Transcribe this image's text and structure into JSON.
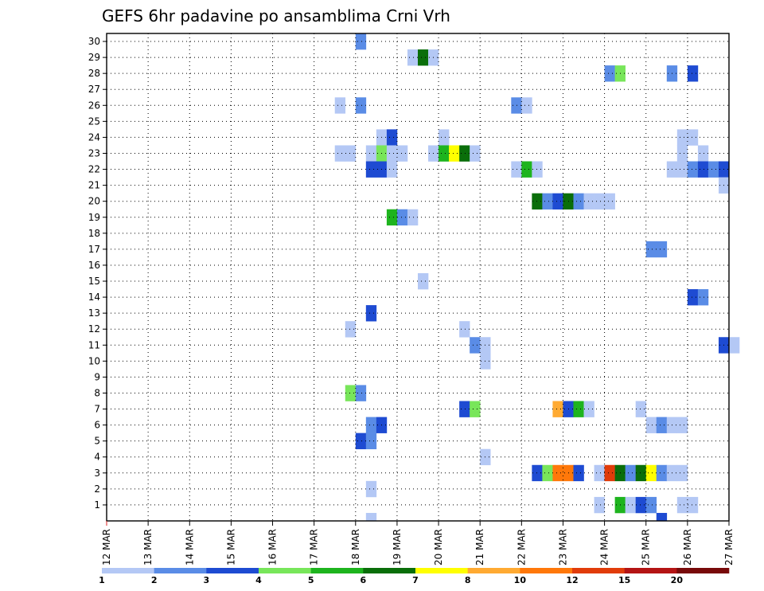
{
  "chart_data": {
    "type": "heatmap",
    "title": "GEFS 6hr padavine po ansamblima Crni Vrh",
    "x_tick_labels": [
      "12 MAR",
      "13 MAR",
      "14 MAR",
      "15 MAR",
      "16 MAR",
      "17 MAR",
      "18 MAR",
      "19 MAR",
      "20 MAR",
      "21 MAR",
      "22 MAR",
      "23 MAR",
      "24 MAR",
      "25 MAR",
      "26 MAR",
      "27 MAR"
    ],
    "y_tick_labels": [
      "1",
      "2",
      "3",
      "4",
      "5",
      "6",
      "7",
      "8",
      "9",
      "10",
      "11",
      "12",
      "13",
      "14",
      "15",
      "16",
      "17",
      "18",
      "19",
      "20",
      "21",
      "22",
      "23",
      "24",
      "25",
      "26",
      "27",
      "28",
      "29",
      "30"
    ],
    "x_range_days": [
      0,
      15
    ],
    "y_range": [
      0,
      30
    ],
    "grid": true,
    "colorbar": {
      "labels": [
        "1",
        "2",
        "3",
        "4",
        "5",
        "6",
        "7",
        "8",
        "10",
        "12",
        "15",
        "20"
      ],
      "colors": [
        "#b4c8f5",
        "#5a8ce6",
        "#1e4bd2",
        "#78e65a",
        "#1eb41e",
        "#0a6e0a",
        "#ffff00",
        "#ffaa32",
        "#ff780a",
        "#e13c0a",
        "#b41414",
        "#780a0a"
      ]
    },
    "cells": [
      {
        "member": 30,
        "step": 24,
        "level": 2
      },
      {
        "member": 29,
        "step": 29,
        "level": 1
      },
      {
        "member": 29,
        "step": 30,
        "level": 6
      },
      {
        "member": 29,
        "step": 31,
        "level": 1
      },
      {
        "member": 28,
        "step": 48,
        "level": 2
      },
      {
        "member": 28,
        "step": 49,
        "level": 4
      },
      {
        "member": 28,
        "step": 54,
        "level": 2
      },
      {
        "member": 28,
        "step": 56,
        "level": 3
      },
      {
        "member": 26,
        "step": 22,
        "level": 1
      },
      {
        "member": 26,
        "step": 24,
        "level": 2
      },
      {
        "member": 26,
        "step": 39,
        "level": 2
      },
      {
        "member": 26,
        "step": 40,
        "level": 1
      },
      {
        "member": 24,
        "step": 26,
        "level": 1
      },
      {
        "member": 24,
        "step": 27,
        "level": 3
      },
      {
        "member": 24,
        "step": 32,
        "level": 1
      },
      {
        "member": 24,
        "step": 55,
        "level": 1
      },
      {
        "member": 24,
        "step": 56,
        "level": 1
      },
      {
        "member": 23,
        "step": 22,
        "level": 1
      },
      {
        "member": 23,
        "step": 23,
        "level": 1
      },
      {
        "member": 23,
        "step": 25,
        "level": 1
      },
      {
        "member": 23,
        "step": 26,
        "level": 4
      },
      {
        "member": 23,
        "step": 27,
        "level": 1
      },
      {
        "member": 23,
        "step": 28,
        "level": 1
      },
      {
        "member": 23,
        "step": 31,
        "level": 1
      },
      {
        "member": 23,
        "step": 32,
        "level": 5
      },
      {
        "member": 23,
        "step": 33,
        "level": 7
      },
      {
        "member": 23,
        "step": 34,
        "level": 6
      },
      {
        "member": 23,
        "step": 35,
        "level": 1
      },
      {
        "member": 23,
        "step": 55,
        "level": 1
      },
      {
        "member": 23,
        "step": 57,
        "level": 1
      },
      {
        "member": 22,
        "step": 25,
        "level": 3
      },
      {
        "member": 22,
        "step": 26,
        "level": 3
      },
      {
        "member": 22,
        "step": 27,
        "level": 1
      },
      {
        "member": 22,
        "step": 39,
        "level": 1
      },
      {
        "member": 22,
        "step": 40,
        "level": 5
      },
      {
        "member": 22,
        "step": 41,
        "level": 1
      },
      {
        "member": 22,
        "step": 54,
        "level": 1
      },
      {
        "member": 22,
        "step": 55,
        "level": 1
      },
      {
        "member": 22,
        "step": 56,
        "level": 2
      },
      {
        "member": 22,
        "step": 57,
        "level": 3
      },
      {
        "member": 22,
        "step": 58,
        "level": 2
      },
      {
        "member": 22,
        "step": 59,
        "level": 3
      },
      {
        "member": 21,
        "step": 59,
        "level": 1
      },
      {
        "member": 20,
        "step": 41,
        "level": 6
      },
      {
        "member": 20,
        "step": 42,
        "level": 2
      },
      {
        "member": 20,
        "step": 43,
        "level": 3
      },
      {
        "member": 20,
        "step": 44,
        "level": 6
      },
      {
        "member": 20,
        "step": 45,
        "level": 2
      },
      {
        "member": 20,
        "step": 46,
        "level": 1
      },
      {
        "member": 20,
        "step": 47,
        "level": 1
      },
      {
        "member": 20,
        "step": 48,
        "level": 1
      },
      {
        "member": 19,
        "step": 27,
        "level": 5
      },
      {
        "member": 19,
        "step": 28,
        "level": 2
      },
      {
        "member": 19,
        "step": 29,
        "level": 1
      },
      {
        "member": 17,
        "step": 52,
        "level": 2
      },
      {
        "member": 17,
        "step": 53,
        "level": 2
      },
      {
        "member": 15,
        "step": 30,
        "level": 1
      },
      {
        "member": 14,
        "step": 56,
        "level": 3
      },
      {
        "member": 14,
        "step": 57,
        "level": 2
      },
      {
        "member": 13,
        "step": 25,
        "level": 3
      },
      {
        "member": 12,
        "step": 23,
        "level": 1
      },
      {
        "member": 12,
        "step": 34,
        "level": 1
      },
      {
        "member": 11,
        "step": 35,
        "level": 2
      },
      {
        "member": 11,
        "step": 36,
        "level": 1
      },
      {
        "member": 11,
        "step": 59,
        "level": 3
      },
      {
        "member": 11,
        "step": 60,
        "level": 1
      },
      {
        "member": 10,
        "step": 36,
        "level": 1
      },
      {
        "member": 8,
        "step": 23,
        "level": 4
      },
      {
        "member": 8,
        "step": 24,
        "level": 2
      },
      {
        "member": 7,
        "step": 34,
        "level": 3
      },
      {
        "member": 7,
        "step": 35,
        "level": 4
      },
      {
        "member": 7,
        "step": 43,
        "level": 8
      },
      {
        "member": 7,
        "step": 44,
        "level": 3
      },
      {
        "member": 7,
        "step": 45,
        "level": 5
      },
      {
        "member": 7,
        "step": 46,
        "level": 1
      },
      {
        "member": 7,
        "step": 51,
        "level": 1
      },
      {
        "member": 6,
        "step": 25,
        "level": 2
      },
      {
        "member": 6,
        "step": 26,
        "level": 3
      },
      {
        "member": 6,
        "step": 52,
        "level": 1
      },
      {
        "member": 6,
        "step": 53,
        "level": 2
      },
      {
        "member": 6,
        "step": 54,
        "level": 1
      },
      {
        "member": 6,
        "step": 55,
        "level": 1
      },
      {
        "member": 5,
        "step": 24,
        "level": 3
      },
      {
        "member": 5,
        "step": 25,
        "level": 2
      },
      {
        "member": 4,
        "step": 36,
        "level": 1
      },
      {
        "member": 3,
        "step": 41,
        "level": 3
      },
      {
        "member": 3,
        "step": 42,
        "level": 4
      },
      {
        "member": 3,
        "step": 43,
        "level": 9
      },
      {
        "member": 3,
        "step": 44,
        "level": 9
      },
      {
        "member": 3,
        "step": 45,
        "level": 3
      },
      {
        "member": 3,
        "step": 47,
        "level": 1
      },
      {
        "member": 3,
        "step": 48,
        "level": 10
      },
      {
        "member": 3,
        "step": 49,
        "level": 6
      },
      {
        "member": 3,
        "step": 50,
        "level": 2
      },
      {
        "member": 3,
        "step": 51,
        "level": 6
      },
      {
        "member": 3,
        "step": 52,
        "level": 7
      },
      {
        "member": 3,
        "step": 53,
        "level": 2
      },
      {
        "member": 3,
        "step": 54,
        "level": 1
      },
      {
        "member": 3,
        "step": 55,
        "level": 1
      },
      {
        "member": 2,
        "step": 25,
        "level": 1
      },
      {
        "member": 1,
        "step": 47,
        "level": 1
      },
      {
        "member": 1,
        "step": 49,
        "level": 5
      },
      {
        "member": 1,
        "step": 50,
        "level": 1
      },
      {
        "member": 1,
        "step": 51,
        "level": 3
      },
      {
        "member": 1,
        "step": 52,
        "level": 2
      },
      {
        "member": 1,
        "step": 55,
        "level": 1
      },
      {
        "member": 1,
        "step": 56,
        "level": 1
      },
      {
        "member": 0,
        "step": 25,
        "level": 1
      },
      {
        "member": 0,
        "step": 53,
        "level": 3
      }
    ]
  }
}
